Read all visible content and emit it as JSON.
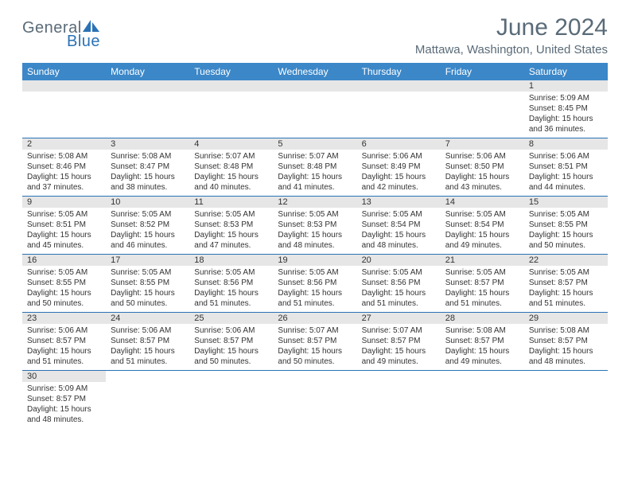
{
  "logo": {
    "part1": "General",
    "part2": "Blue"
  },
  "title": "June 2024",
  "location": "Mattawa, Washington, United States",
  "colors": {
    "header_bg": "#3b87c8",
    "header_text": "#ffffff",
    "border": "#2a72b5",
    "daynum_bg": "#e6e6e6",
    "title_color": "#5a6b78"
  },
  "weekdays": [
    "Sunday",
    "Monday",
    "Tuesday",
    "Wednesday",
    "Thursday",
    "Friday",
    "Saturday"
  ],
  "weeks": [
    [
      null,
      null,
      null,
      null,
      null,
      null,
      {
        "n": "1",
        "sr": "5:09 AM",
        "ss": "8:45 PM",
        "dl1": "15 hours",
        "dl2": "and 36 minutes."
      }
    ],
    [
      {
        "n": "2",
        "sr": "5:08 AM",
        "ss": "8:46 PM",
        "dl1": "15 hours",
        "dl2": "and 37 minutes."
      },
      {
        "n": "3",
        "sr": "5:08 AM",
        "ss": "8:47 PM",
        "dl1": "15 hours",
        "dl2": "and 38 minutes."
      },
      {
        "n": "4",
        "sr": "5:07 AM",
        "ss": "8:48 PM",
        "dl1": "15 hours",
        "dl2": "and 40 minutes."
      },
      {
        "n": "5",
        "sr": "5:07 AM",
        "ss": "8:48 PM",
        "dl1": "15 hours",
        "dl2": "and 41 minutes."
      },
      {
        "n": "6",
        "sr": "5:06 AM",
        "ss": "8:49 PM",
        "dl1": "15 hours",
        "dl2": "and 42 minutes."
      },
      {
        "n": "7",
        "sr": "5:06 AM",
        "ss": "8:50 PM",
        "dl1": "15 hours",
        "dl2": "and 43 minutes."
      },
      {
        "n": "8",
        "sr": "5:06 AM",
        "ss": "8:51 PM",
        "dl1": "15 hours",
        "dl2": "and 44 minutes."
      }
    ],
    [
      {
        "n": "9",
        "sr": "5:05 AM",
        "ss": "8:51 PM",
        "dl1": "15 hours",
        "dl2": "and 45 minutes."
      },
      {
        "n": "10",
        "sr": "5:05 AM",
        "ss": "8:52 PM",
        "dl1": "15 hours",
        "dl2": "and 46 minutes."
      },
      {
        "n": "11",
        "sr": "5:05 AM",
        "ss": "8:53 PM",
        "dl1": "15 hours",
        "dl2": "and 47 minutes."
      },
      {
        "n": "12",
        "sr": "5:05 AM",
        "ss": "8:53 PM",
        "dl1": "15 hours",
        "dl2": "and 48 minutes."
      },
      {
        "n": "13",
        "sr": "5:05 AM",
        "ss": "8:54 PM",
        "dl1": "15 hours",
        "dl2": "and 48 minutes."
      },
      {
        "n": "14",
        "sr": "5:05 AM",
        "ss": "8:54 PM",
        "dl1": "15 hours",
        "dl2": "and 49 minutes."
      },
      {
        "n": "15",
        "sr": "5:05 AM",
        "ss": "8:55 PM",
        "dl1": "15 hours",
        "dl2": "and 50 minutes."
      }
    ],
    [
      {
        "n": "16",
        "sr": "5:05 AM",
        "ss": "8:55 PM",
        "dl1": "15 hours",
        "dl2": "and 50 minutes."
      },
      {
        "n": "17",
        "sr": "5:05 AM",
        "ss": "8:55 PM",
        "dl1": "15 hours",
        "dl2": "and 50 minutes."
      },
      {
        "n": "18",
        "sr": "5:05 AM",
        "ss": "8:56 PM",
        "dl1": "15 hours",
        "dl2": "and 51 minutes."
      },
      {
        "n": "19",
        "sr": "5:05 AM",
        "ss": "8:56 PM",
        "dl1": "15 hours",
        "dl2": "and 51 minutes."
      },
      {
        "n": "20",
        "sr": "5:05 AM",
        "ss": "8:56 PM",
        "dl1": "15 hours",
        "dl2": "and 51 minutes."
      },
      {
        "n": "21",
        "sr": "5:05 AM",
        "ss": "8:57 PM",
        "dl1": "15 hours",
        "dl2": "and 51 minutes."
      },
      {
        "n": "22",
        "sr": "5:05 AM",
        "ss": "8:57 PM",
        "dl1": "15 hours",
        "dl2": "and 51 minutes."
      }
    ],
    [
      {
        "n": "23",
        "sr": "5:06 AM",
        "ss": "8:57 PM",
        "dl1": "15 hours",
        "dl2": "and 51 minutes."
      },
      {
        "n": "24",
        "sr": "5:06 AM",
        "ss": "8:57 PM",
        "dl1": "15 hours",
        "dl2": "and 51 minutes."
      },
      {
        "n": "25",
        "sr": "5:06 AM",
        "ss": "8:57 PM",
        "dl1": "15 hours",
        "dl2": "and 50 minutes."
      },
      {
        "n": "26",
        "sr": "5:07 AM",
        "ss": "8:57 PM",
        "dl1": "15 hours",
        "dl2": "and 50 minutes."
      },
      {
        "n": "27",
        "sr": "5:07 AM",
        "ss": "8:57 PM",
        "dl1": "15 hours",
        "dl2": "and 49 minutes."
      },
      {
        "n": "28",
        "sr": "5:08 AM",
        "ss": "8:57 PM",
        "dl1": "15 hours",
        "dl2": "and 49 minutes."
      },
      {
        "n": "29",
        "sr": "5:08 AM",
        "ss": "8:57 PM",
        "dl1": "15 hours",
        "dl2": "and 48 minutes."
      }
    ],
    [
      {
        "n": "30",
        "sr": "5:09 AM",
        "ss": "8:57 PM",
        "dl1": "15 hours",
        "dl2": "and 48 minutes."
      },
      null,
      null,
      null,
      null,
      null,
      null
    ]
  ],
  "labels": {
    "sunrise": "Sunrise:",
    "sunset": "Sunset:",
    "daylight": "Daylight:"
  }
}
